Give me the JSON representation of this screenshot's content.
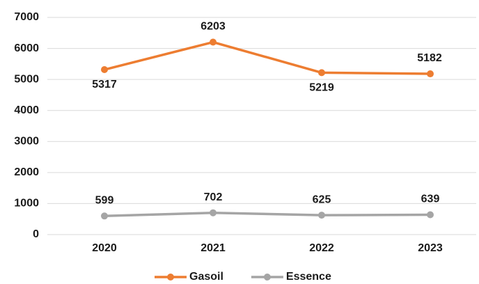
{
  "chart_data": {
    "type": "line",
    "categories": [
      "2020",
      "2021",
      "2022",
      "2023"
    ],
    "series": [
      {
        "name": "Gasoil",
        "color": "#ED7D31",
        "values": [
          5317,
          6203,
          5219,
          5182
        ]
      },
      {
        "name": "Essence",
        "color": "#A5A5A5",
        "values": [
          599,
          702,
          625,
          639
        ]
      }
    ],
    "ylim": [
      0,
      7000
    ],
    "yticks": [
      0,
      1000,
      2000,
      3000,
      4000,
      5000,
      6000,
      7000
    ],
    "grid": true,
    "legend": "bottom"
  }
}
